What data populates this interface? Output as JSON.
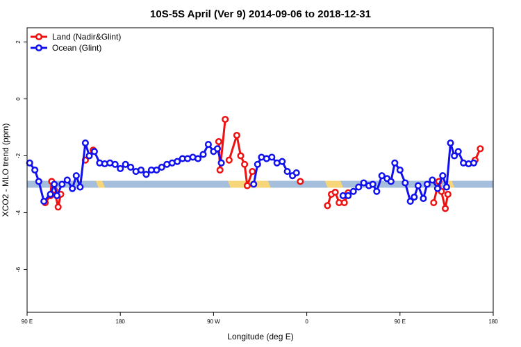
{
  "chart_data": {
    "type": "line",
    "title": "10S-5S April (Ver 9)   2014-09-06 to 2018-12-31",
    "xlabel": "Longitude (deg E)",
    "ylabel": "XCO2 - MLO trend (ppm)",
    "xlim": [
      90,
      450
    ],
    "ylim": [
      -7.5,
      2.5
    ],
    "x_ticks": [
      {
        "value": 90,
        "label": "90 E"
      },
      {
        "value": 162,
        "label": "180"
      },
      {
        "value": 234,
        "label": "90 W"
      },
      {
        "value": 306,
        "label": "0"
      },
      {
        "value": 378,
        "label": "90 E"
      },
      {
        "value": 450,
        "label": "180"
      }
    ],
    "y_ticks": [
      {
        "value": 2,
        "label": "2"
      },
      {
        "value": 0,
        "label": "0"
      },
      {
        "value": -2,
        "label": "-2"
      },
      {
        "value": -4,
        "label": "-4"
      },
      {
        "value": -6,
        "label": "-6"
      }
    ],
    "grid": false,
    "legend_position": "top-left",
    "land_ocean_band": {
      "y": -3.0,
      "ocean_color": "#a5bedc",
      "land_color": "#f7d679",
      "land_segments": [
        [
          143,
          148
        ],
        [
          245,
          276
        ],
        [
          320,
          332
        ],
        [
          412,
          418
        ]
      ]
    },
    "series": [
      {
        "name": "Land (Nadir&Glint)",
        "color": "#ee1111",
        "segments": [
          [
            [
              104,
              -3.65
            ],
            [
              108,
              -3.4
            ],
            [
              109,
              -2.9
            ],
            [
              111,
              -3.2
            ],
            [
              114,
              -3.8
            ],
            [
              116,
              -3.35
            ]
          ],
          [
            [
              135,
              -2.15
            ],
            [
              141,
              -1.8
            ]
          ],
          [
            [
              238,
              -1.5
            ],
            [
              239,
              -2.5
            ],
            [
              243,
              -0.72
            ]
          ],
          [
            [
              246,
              -2.15
            ],
            [
              252,
              -1.28
            ],
            [
              255,
              -2.0
            ],
            [
              258,
              -2.3
            ],
            [
              260,
              -3.05
            ],
            [
              264,
              -2.55
            ]
          ],
          [
            [
              301,
              -2.9
            ]
          ],
          [
            [
              322,
              -3.75
            ],
            [
              325,
              -3.35
            ],
            [
              328,
              -3.28
            ],
            [
              331,
              -3.65
            ],
            [
              335,
              -3.65
            ],
            [
              338,
              -3.3
            ]
          ],
          [
            [
              404,
              -3.65
            ],
            [
              408,
              -2.9
            ],
            [
              410,
              -3.25
            ],
            [
              413,
              -3.85
            ],
            [
              415,
              -3.35
            ]
          ],
          [
            [
              436,
              -2.15
            ],
            [
              440,
              -1.75
            ]
          ]
        ]
      },
      {
        "name": "Ocean (Glint)",
        "color": "#1111ee",
        "segments": [
          [
            [
              92,
              -2.25
            ],
            [
              96,
              -2.5
            ],
            [
              99,
              -2.9
            ],
            [
              103,
              -3.6
            ],
            [
              108,
              -3.35
            ],
            [
              111,
              -3.0
            ],
            [
              113,
              -3.4
            ],
            [
              117,
              -3.0
            ],
            [
              121,
              -2.85
            ],
            [
              125,
              -3.15
            ],
            [
              128,
              -2.7
            ],
            [
              131,
              -3.1
            ],
            [
              135,
              -1.55
            ],
            [
              138,
              -2.0
            ],
            [
              142,
              -1.85
            ],
            [
              146,
              -2.25
            ],
            [
              150,
              -2.28
            ],
            [
              154,
              -2.25
            ],
            [
              158,
              -2.3
            ],
            [
              162,
              -2.45
            ],
            [
              166,
              -2.3
            ],
            [
              170,
              -2.4
            ],
            [
              174,
              -2.55
            ],
            [
              178,
              -2.5
            ],
            [
              182,
              -2.65
            ],
            [
              186,
              -2.5
            ],
            [
              190,
              -2.5
            ],
            [
              194,
              -2.4
            ],
            [
              198,
              -2.3
            ],
            [
              202,
              -2.25
            ],
            [
              206,
              -2.2
            ],
            [
              210,
              -2.1
            ],
            [
              214,
              -2.1
            ],
            [
              218,
              -2.05
            ],
            [
              222,
              -2.1
            ],
            [
              226,
              -1.95
            ],
            [
              230,
              -1.6
            ],
            [
              234,
              -1.85
            ],
            [
              237,
              -1.75
            ],
            [
              240,
              -2.25
            ]
          ],
          [
            [
              265,
              -3.0
            ],
            [
              268,
              -2.3
            ],
            [
              271,
              -2.05
            ],
            [
              275,
              -2.1
            ],
            [
              279,
              -2.05
            ],
            [
              283,
              -2.25
            ],
            [
              287,
              -2.2
            ],
            [
              291,
              -2.55
            ],
            [
              295,
              -2.7
            ],
            [
              298,
              -2.6
            ]
          ],
          [
            [
              334,
              -3.4
            ],
            [
              338,
              -3.4
            ],
            [
              342,
              -3.25
            ],
            [
              346,
              -3.1
            ],
            [
              350,
              -2.95
            ],
            [
              354,
              -3.05
            ],
            [
              357,
              -3.0
            ],
            [
              360,
              -3.25
            ],
            [
              364,
              -2.7
            ],
            [
              368,
              -2.8
            ],
            [
              371,
              -2.9
            ],
            [
              374,
              -2.25
            ],
            [
              378,
              -2.5
            ],
            [
              382,
              -2.95
            ],
            [
              386,
              -3.6
            ],
            [
              389,
              -3.45
            ],
            [
              392,
              -3.05
            ],
            [
              396,
              -3.5
            ],
            [
              399,
              -3.0
            ],
            [
              403,
              -2.85
            ],
            [
              407,
              -3.15
            ],
            [
              411,
              -2.7
            ],
            [
              414,
              -3.1
            ],
            [
              417,
              -1.55
            ],
            [
              420,
              -2.0
            ],
            [
              423,
              -1.85
            ],
            [
              427,
              -2.25
            ],
            [
              431,
              -2.28
            ],
            [
              435,
              -2.25
            ]
          ]
        ]
      }
    ]
  }
}
